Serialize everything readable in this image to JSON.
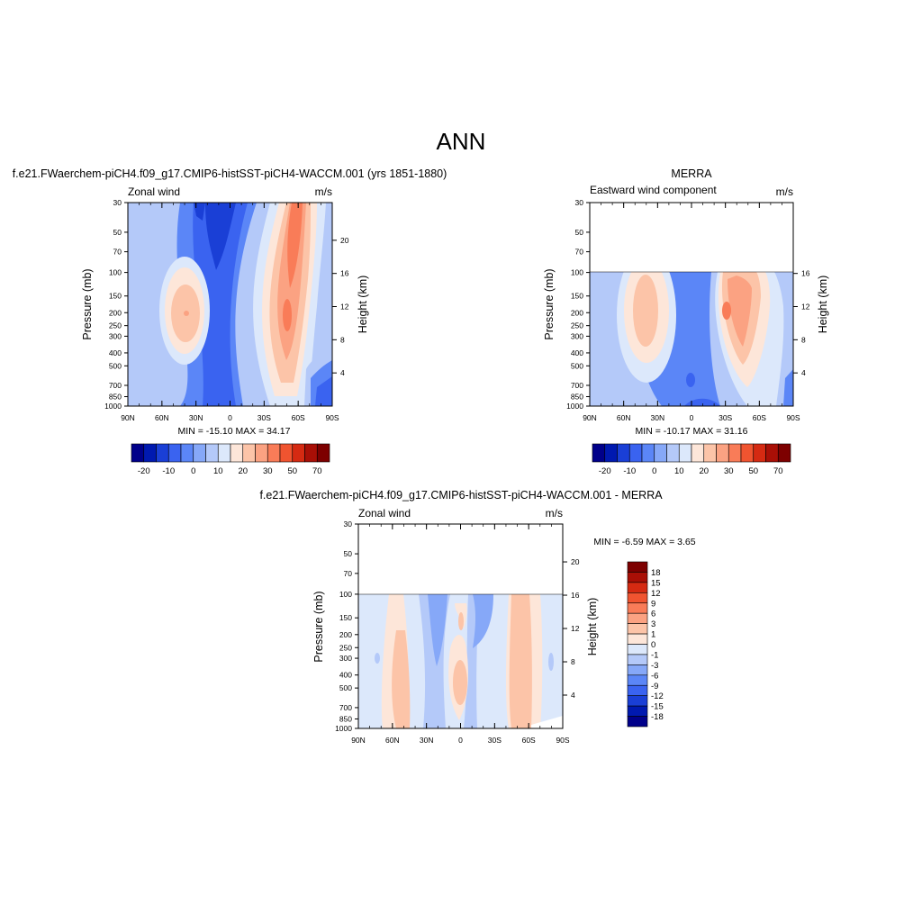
{
  "page": {
    "title": "ANN"
  },
  "palettes": {
    "wind": [
      "#00008a",
      "#0019b0",
      "#1a3fd6",
      "#3a63f0",
      "#5b86f7",
      "#86a8f8",
      "#b4c9f9",
      "#dce8fb",
      "#fde6d9",
      "#fcc4a8",
      "#fba282",
      "#f97c58",
      "#f05430",
      "#d52a12",
      "#a90f06",
      "#7d0000"
    ],
    "diff": [
      "#00008a",
      "#0019b0",
      "#1a3fd6",
      "#3a63f0",
      "#5b86f7",
      "#86a8f8",
      "#b4c9f9",
      "#dce8fb",
      "#fde6d9",
      "#fcc4a8",
      "#fba282",
      "#f97c58",
      "#f05430",
      "#d52a12",
      "#a90f06",
      "#7d0000"
    ]
  },
  "chart_data": [
    {
      "type": "heatmap",
      "title": "f.e21.FWaerchem-piCH4.f09_g17.CMIP6-histSST-piCH4-WACCM.001 (yrs 1851-1880)",
      "left_label": "Zonal wind",
      "right_label": "m/s",
      "ylabel": "Pressure (mb)",
      "y2label": "Height (km)",
      "x_ticks": [
        "90N",
        "60N",
        "30N",
        "0",
        "30S",
        "60S",
        "90S"
      ],
      "y_ticks": [
        "30",
        "50",
        "70",
        "100",
        "150",
        "200",
        "250",
        "300",
        "400",
        "500",
        "700",
        "850",
        "1000"
      ],
      "y2_ticks": [
        "20",
        "16",
        "12",
        "8",
        "4"
      ],
      "stats": "MIN = -15.10  MAX =  34.17",
      "colorbar": {
        "orientation": "horizontal",
        "labels": [
          "-20",
          "-10",
          "0",
          "10",
          "20",
          "30",
          "50",
          "70"
        ]
      },
      "ylim": [
        1000,
        30
      ],
      "data_top_mb": 30
    },
    {
      "type": "heatmap",
      "title": "MERRA",
      "left_label": "Eastward wind component",
      "right_label": "m/s",
      "ylabel": "Pressure (mb)",
      "y2label": "Height (km)",
      "x_ticks": [
        "90N",
        "60N",
        "30N",
        "0",
        "30S",
        "60S",
        "90S"
      ],
      "y_ticks": [
        "30",
        "50",
        "70",
        "100",
        "150",
        "200",
        "250",
        "300",
        "400",
        "500",
        "700",
        "850",
        "1000"
      ],
      "y2_ticks": [
        "16",
        "12",
        "8",
        "4"
      ],
      "stats": "MIN = -10.17  MAX =  31.16",
      "colorbar": {
        "orientation": "horizontal",
        "labels": [
          "-20",
          "-10",
          "0",
          "10",
          "20",
          "30",
          "50",
          "70"
        ]
      },
      "ylim": [
        1000,
        30
      ],
      "data_top_mb": 100
    },
    {
      "type": "heatmap",
      "title": "f.e21.FWaerchem-piCH4.f09_g17.CMIP6-histSST-piCH4-WACCM.001 - MERRA",
      "left_label": "Zonal wind",
      "right_label": "m/s",
      "ylabel": "Pressure (mb)",
      "y2label": "Height (km)",
      "x_ticks": [
        "90N",
        "60N",
        "30N",
        "0",
        "30S",
        "60S",
        "90S"
      ],
      "y_ticks": [
        "30",
        "50",
        "70",
        "100",
        "150",
        "200",
        "250",
        "300",
        "400",
        "500",
        "700",
        "850",
        "1000"
      ],
      "y2_ticks": [
        "20",
        "16",
        "12",
        "8",
        "4"
      ],
      "stats": "MIN =  -6.59  MAX =   3.65",
      "colorbar": {
        "orientation": "vertical",
        "labels": [
          "18",
          "15",
          "12",
          "9",
          "6",
          "3",
          "1",
          "0",
          "-1",
          "-3",
          "-6",
          "-9",
          "-12",
          "-15",
          "-18"
        ]
      },
      "ylim": [
        1000,
        30
      ],
      "data_top_mb": 100
    }
  ]
}
